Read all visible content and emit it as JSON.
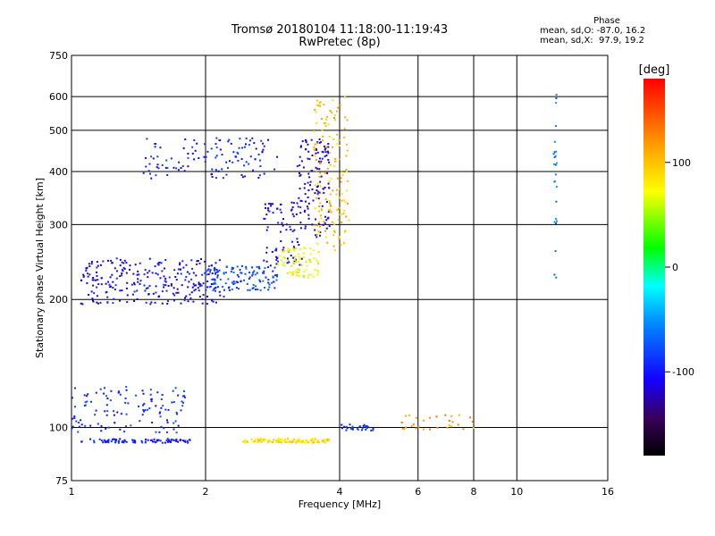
{
  "chart_data": {
    "type": "scatter",
    "title": "Tromsø 20180104 11:18:00-11:19:43",
    "subtitle": "RwPretec (8p)",
    "xlabel": "Frequency [MHz]",
    "ylabel": "Stationary phase Virtual Height [km]",
    "x_scale": "log",
    "y_scale": "log",
    "xlim": [
      1,
      16
    ],
    "ylim": [
      75,
      750
    ],
    "x_ticks": [
      1,
      2,
      4,
      6,
      8,
      10,
      16
    ],
    "x_ticks_labels": [
      "1",
      "2",
      "4",
      "6",
      "8",
      "10",
      "16"
    ],
    "y_ticks": [
      75,
      100,
      200,
      300,
      400,
      500,
      600,
      750
    ],
    "y_ticks_labels": [
      "75",
      "100",
      "200",
      "300",
      "400",
      "500",
      "600",
      "750"
    ],
    "grid": true,
    "colorbar": {
      "label": "[deg]",
      "range": [
        -180,
        180
      ],
      "ticks": [
        -100,
        0,
        100
      ],
      "ticks_labels": [
        "-100",
        "0",
        "100"
      ]
    },
    "legend": {
      "title": "Phase",
      "lines": [
        "mean, sd,O: -87.0, 16.2",
        "mean, sd,X:  97.9, 19.2"
      ],
      "placement": "top-right"
    },
    "series": [
      {
        "clusters": [
          {
            "f": [
              1.05,
              1.85
            ],
            "h": [
              92,
              94
            ],
            "phase": -100,
            "n": 90
          },
          {
            "f": [
              1.0,
              1.8
            ],
            "h": [
              97,
              125
            ],
            "phase": -90,
            "n": 120
          },
          {
            "f": [
              1.05,
              2.2
            ],
            "h": [
              195,
              250
            ],
            "phase": -105,
            "n": 260
          },
          {
            "f": [
              2.0,
              2.9
            ],
            "h": [
              210,
              240
            ],
            "phase": -80,
            "n": 120
          },
          {
            "f": [
              1.45,
              2.9
            ],
            "h": [
              385,
              480
            ],
            "phase": -95,
            "n": 120
          },
          {
            "f": [
              2.7,
              3.3
            ],
            "h": [
              240,
              340
            ],
            "phase": -110,
            "n": 80
          },
          {
            "f": [
              3.2,
              3.8
            ],
            "h": [
              280,
              480
            ],
            "phase": -115,
            "n": 120
          },
          {
            "f": [
              2.9,
              3.6
            ],
            "h": [
              225,
              265
            ],
            "phase": 75,
            "n": 80
          },
          {
            "f": [
              3.5,
              4.2
            ],
            "h": [
              260,
              600
            ],
            "phase": 100,
            "n": 150
          },
          {
            "f": [
              2.4,
              3.8
            ],
            "h": [
              92,
              94
            ],
            "phase": 85,
            "n": 110
          },
          {
            "f": [
              4.0,
              4.8
            ],
            "h": [
              98,
              102
            ],
            "phase": -85,
            "n": 30
          },
          {
            "f": [
              5.5,
              8.0
            ],
            "h": [
              99,
              107
            ],
            "phase": 120,
            "n": 30
          },
          {
            "f": [
              12.1,
              12.3
            ],
            "h": [
              220,
              640
            ],
            "phase": -60,
            "n": 25
          }
        ]
      }
    ]
  }
}
